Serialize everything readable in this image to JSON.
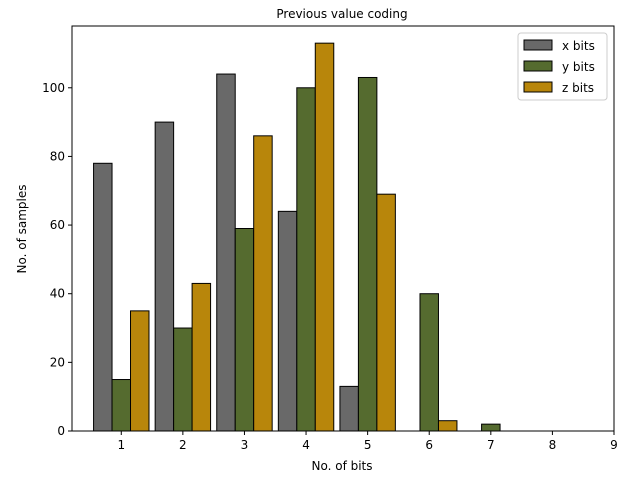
{
  "chart_data": {
    "type": "bar",
    "title": "Previous value coding",
    "xlabel": "No. of bits",
    "ylabel": "No. of samples",
    "categories": [
      1,
      2,
      3,
      4,
      5,
      6,
      7,
      8,
      9
    ],
    "x_ticks": [
      "1",
      "2",
      "3",
      "4",
      "5",
      "6",
      "7",
      "8",
      "9"
    ],
    "y_ticks": [
      0,
      20,
      40,
      60,
      80,
      100
    ],
    "xlim": [
      0.2,
      9.0
    ],
    "ylim": [
      0,
      118
    ],
    "grid": false,
    "legend_position": "top-right",
    "series": [
      {
        "name": "x bits",
        "color": "#696969",
        "values": [
          78,
          90,
          104,
          64,
          13,
          0,
          0,
          0,
          0
        ]
      },
      {
        "name": "y bits",
        "color": "#556b2f",
        "values": [
          15,
          30,
          59,
          100,
          103,
          40,
          2,
          0,
          0
        ]
      },
      {
        "name": "z bits",
        "color": "#b8860b",
        "values": [
          35,
          43,
          86,
          113,
          69,
          3,
          0,
          0,
          0
        ]
      }
    ]
  }
}
